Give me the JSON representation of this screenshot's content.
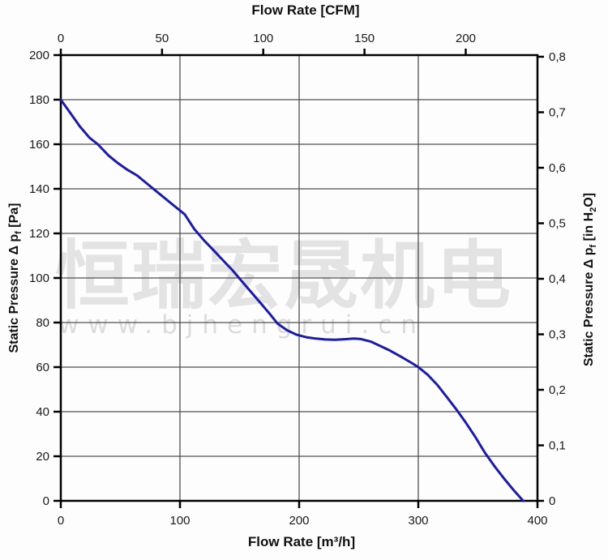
{
  "watermark": {
    "line1": "恒瑞宏晟机电",
    "line2": "www.bjhengrui.cn"
  },
  "chart_data": {
    "type": "line",
    "title_top": "Flow Rate [CFM]",
    "xlabel_bottom": "Flow Rate [m³/h]",
    "ylabel_left": {
      "pre": "Static Pressure Δ p",
      "sub": "f",
      "post": " [Pa]"
    },
    "ylabel_right": {
      "pre": "Static Pressure Δ p",
      "sub": "f",
      "mid": " [in H",
      "sub2": "2",
      "post": "O]"
    },
    "x_bottom": {
      "min": 0,
      "max": 400,
      "ticks": [
        0,
        100,
        200,
        300,
        400
      ],
      "tick_labels": [
        "0",
        "100",
        "200",
        "300",
        "400"
      ],
      "unit": "m³/h"
    },
    "x_top": {
      "ticks": [
        0,
        50,
        100,
        150,
        200
      ],
      "tick_labels": [
        "0",
        "50",
        "100",
        "150",
        "200"
      ],
      "unit": "CFM",
      "m3h_per_cfm": 1.699
    },
    "y_left": {
      "min": 0,
      "max": 200,
      "ticks": [
        0,
        20,
        40,
        60,
        80,
        100,
        120,
        140,
        160,
        180,
        200
      ],
      "tick_labels": [
        "0",
        "20",
        "40",
        "60",
        "80",
        "100",
        "120",
        "140",
        "160",
        "180",
        "200"
      ],
      "unit": "Pa"
    },
    "y_right": {
      "min": 0,
      "max": 0.8,
      "values": [
        0,
        0.1,
        0.2,
        0.3,
        0.4,
        0.5,
        0.6,
        0.7,
        0.8
      ],
      "tick_labels": [
        "0",
        "0,1",
        "0,2",
        "0,3",
        "0,4",
        "0,5",
        "0,6",
        "0,7",
        "0,8"
      ],
      "unit": "in H2O",
      "pa_per_inh2o": 249.089
    },
    "grid": {
      "vertical_at_m3h": [
        100,
        200,
        300
      ],
      "horizontal_step_pa": 20,
      "color": "#4f4f4f"
    },
    "series": [
      {
        "name": "fan-performance-curve",
        "color": "#1b1ba8",
        "points_m3h_pa": [
          [
            0,
            180
          ],
          [
            8,
            174
          ],
          [
            16,
            168
          ],
          [
            24,
            163
          ],
          [
            31,
            160
          ],
          [
            40,
            155
          ],
          [
            48,
            151.5
          ],
          [
            56,
            148.5
          ],
          [
            64,
            146
          ],
          [
            72,
            142.5
          ],
          [
            80,
            139
          ],
          [
            88,
            135.5
          ],
          [
            96,
            132
          ],
          [
            104,
            128.5
          ],
          [
            112,
            122
          ],
          [
            120,
            117
          ],
          [
            128,
            112.5
          ],
          [
            136,
            108
          ],
          [
            144,
            103.5
          ],
          [
            152,
            98.5
          ],
          [
            160,
            93.5
          ],
          [
            168,
            88.5
          ],
          [
            176,
            83.5
          ],
          [
            182,
            79.5
          ],
          [
            190,
            76.5
          ],
          [
            198,
            74.5
          ],
          [
            206,
            73.4
          ],
          [
            214,
            72.8
          ],
          [
            222,
            72.4
          ],
          [
            230,
            72.3
          ],
          [
            238,
            72.5
          ],
          [
            246,
            72.8
          ],
          [
            252,
            72.6
          ],
          [
            260,
            71.5
          ],
          [
            268,
            69.5
          ],
          [
            276,
            67.5
          ],
          [
            286,
            64.5
          ],
          [
            294,
            62
          ],
          [
            300,
            60
          ],
          [
            308,
            56.5
          ],
          [
            316,
            52
          ],
          [
            324,
            46.5
          ],
          [
            332,
            41
          ],
          [
            340,
            35
          ],
          [
            348,
            28.5
          ],
          [
            356,
            21.5
          ],
          [
            364,
            15.5
          ],
          [
            372,
            10
          ],
          [
            380,
            4.8
          ],
          [
            388,
            0
          ]
        ]
      }
    ]
  }
}
